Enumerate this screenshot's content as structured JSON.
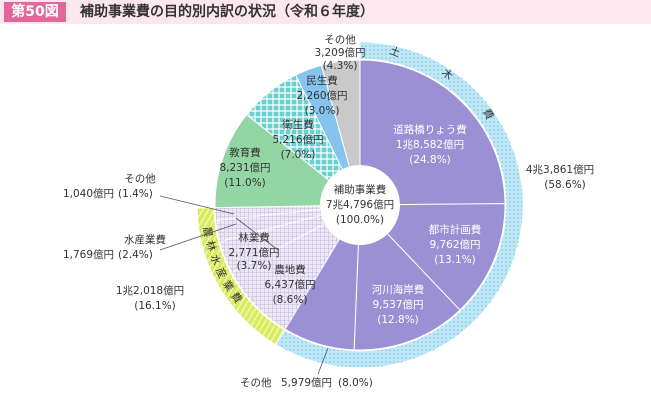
{
  "chart_data": {
    "type": "pie",
    "badge": "第50図",
    "title": "補助事業費の目的別内訳の状況（令和６年度）",
    "center": {
      "name": "補助事業費",
      "value": 74796,
      "value_label": "7兆4,796億円",
      "percent_label": "(100.0%)"
    },
    "categories": [
      "道路橋りょう費",
      "都市計画費",
      "河川海岸費",
      "その他",
      "農地費",
      "林業費",
      "水産業費",
      "その他",
      "教育費",
      "衛生費",
      "民生費",
      "その他"
    ],
    "values": [
      18582,
      9762,
      9537,
      5979,
      6437,
      2771,
      1769,
      1040,
      8231,
      5216,
      2260,
      3209
    ],
    "value_labels": [
      "1兆8,582億円",
      "9,762億円",
      "9,537億円",
      "5,979億円",
      "6,437億円",
      "2,771億円",
      "1,769億円",
      "1,040億円",
      "8,231億円",
      "5,216億円",
      "2,260億円",
      "3,209億円"
    ],
    "percent_labels": [
      "(24.8%)",
      "(13.1%)",
      "(12.8%)",
      "(8.0%)",
      "(8.6%)",
      "(3.7%)",
      "(2.4%)",
      "(1.4%)",
      "(11.0%)",
      "(7.0%)",
      "(3.0%)",
      "(4.3%)"
    ],
    "colors": [
      "#9b90d4",
      "#9b90d4",
      "#9b90d4",
      "#9b90d4",
      "#ece8f6",
      "#ece8f6",
      "#ece8f6",
      "#ece8f6",
      "#93d6a3",
      "#6ccfcf",
      "#86c3ef",
      "#c9c9c9"
    ],
    "groups": [
      {
        "name": "土木費",
        "value": 43861,
        "value_label": "4兆3,861億円",
        "percent_label": "(58.6%)",
        "color": "#bfe7f6"
      },
      {
        "name": "農林水産業費",
        "value": 12018,
        "value_label": "1兆2,018億円",
        "percent_label": "(16.1%)",
        "color": "#d9ec5e"
      }
    ]
  }
}
